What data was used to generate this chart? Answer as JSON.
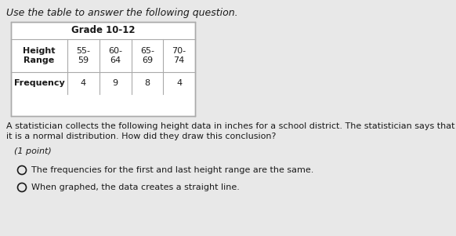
{
  "title_line": "Use the table to answer the following question.",
  "table_header": "Grade 10-12",
  "height_range_label": "Height\nRange",
  "col_headers": [
    "55-\n59",
    "60-\n64",
    "65-\n69",
    "70-\n74"
  ],
  "freq_label": "Frequency",
  "frequencies": [
    "4",
    "9",
    "8",
    "4"
  ],
  "body_text1": "A statistician collects the following height data in inches for a school district. The statistician says that",
  "body_text2": "it is a normal distribution. How did they draw this conclusion?",
  "point_text": "(1 point)",
  "option1": "The frequencies for the first and last height range are the same.",
  "option2": "When graphed, the data creates a straight line.",
  "bg_color": "#e8e8e8",
  "text_color": "#1a1a1a",
  "table_line_color": "#aaaaaa",
  "table_bg": "#ffffff"
}
